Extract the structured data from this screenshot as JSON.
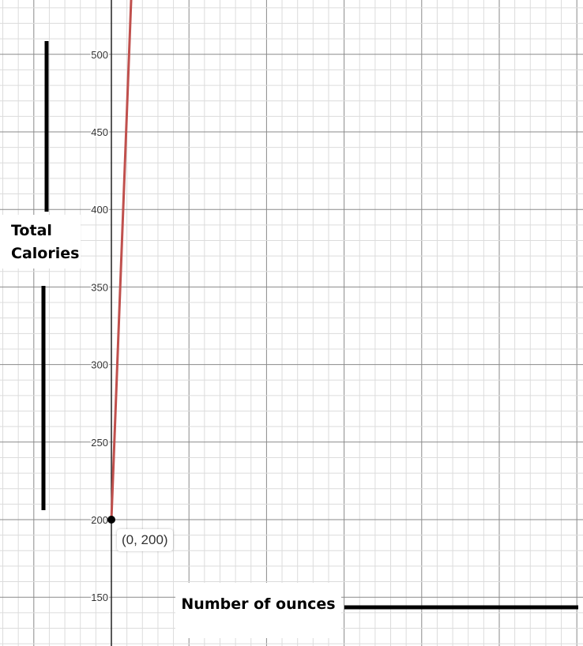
{
  "chart_data": {
    "type": "line",
    "title": "",
    "xlabel": "Number of ounces",
    "ylabel": "Total Calories",
    "ylim": [
      118,
      536
    ],
    "yticks": [
      150,
      200,
      250,
      300,
      350,
      400,
      450,
      500
    ],
    "ytick_labels": [
      "150",
      "200",
      "250",
      "300",
      "350",
      "400",
      "450",
      "500"
    ],
    "grid": true,
    "line_color": "#c0504d",
    "point": {
      "x": 0,
      "y": 200,
      "label": "(0, 200)"
    }
  }
}
